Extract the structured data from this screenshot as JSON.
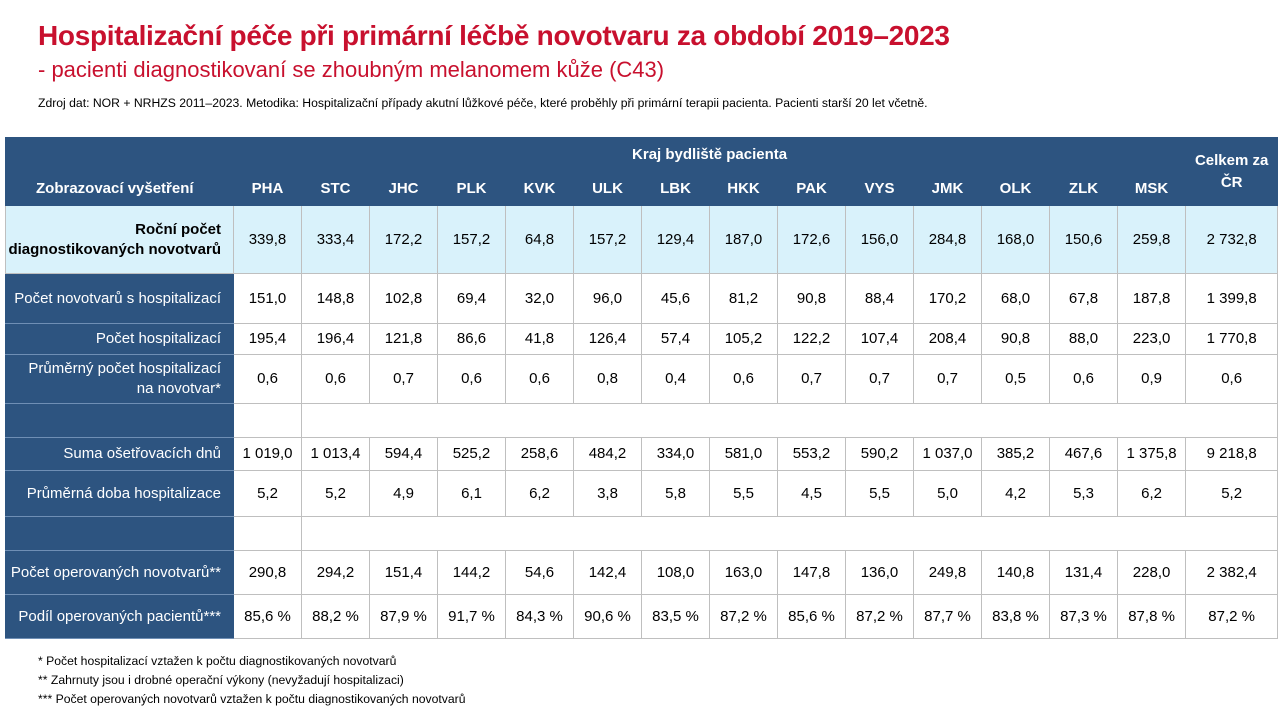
{
  "header": {
    "title": "Hospitalizační péče při primární léčbě novotvaru za období 2019–2023",
    "subtitle": "- pacienti diagnostikovaní se zhoubným melanomem kůže (C43)",
    "source": "Zdroj dat: NOR + NRHZS 2011–2023. Metodika: Hospitalizační případy akutní lůžkové péče, které proběhly při primární terapii pacienta. Pacienti starší 20 let včetně."
  },
  "table": {
    "row_header_label": "Zobrazovací vyšetření",
    "region_group_label": "Kraj bydliště pacienta",
    "total_label": "Celkem za ČR",
    "regions": [
      "PHA",
      "STC",
      "JHC",
      "PLK",
      "KVK",
      "ULK",
      "LBK",
      "HKK",
      "PAK",
      "VYS",
      "JMK",
      "OLK",
      "ZLK",
      "MSK"
    ],
    "rows": [
      {
        "label": "Roční počet diagnostikovaných novotvarů",
        "cells": [
          "339,8",
          "333,4",
          "172,2",
          "157,2",
          "64,8",
          "157,2",
          "129,4",
          "187,0",
          "172,6",
          "156,0",
          "284,8",
          "168,0",
          "150,6",
          "259,8",
          "2 732,8"
        ]
      },
      {
        "label": "Počet novotvarů s hospitalizací",
        "cells": [
          "151,0",
          "148,8",
          "102,8",
          "69,4",
          "32,0",
          "96,0",
          "45,6",
          "81,2",
          "90,8",
          "88,4",
          "170,2",
          "68,0",
          "67,8",
          "187,8",
          "1 399,8"
        ]
      },
      {
        "label": "Počet hospitalizací",
        "cells": [
          "195,4",
          "196,4",
          "121,8",
          "86,6",
          "41,8",
          "126,4",
          "57,4",
          "105,2",
          "122,2",
          "107,4",
          "208,4",
          "90,8",
          "88,0",
          "223,0",
          "1 770,8"
        ]
      },
      {
        "label": "Průměrný počet hospitalizací na novotvar*",
        "cells": [
          "0,6",
          "0,6",
          "0,7",
          "0,6",
          "0,6",
          "0,8",
          "0,4",
          "0,6",
          "0,7",
          "0,7",
          "0,7",
          "0,5",
          "0,6",
          "0,9",
          "0,6"
        ]
      },
      {
        "label": "Suma ošetřovacích dnů",
        "cells": [
          "1 019,0",
          "1 013,4",
          "594,4",
          "525,2",
          "258,6",
          "484,2",
          "334,0",
          "581,0",
          "553,2",
          "590,2",
          "1 037,0",
          "385,2",
          "467,6",
          "1 375,8",
          "9 218,8"
        ]
      },
      {
        "label": "Průměrná doba hospitalizace",
        "cells": [
          "5,2",
          "5,2",
          "4,9",
          "6,1",
          "6,2",
          "3,8",
          "5,8",
          "5,5",
          "4,5",
          "5,5",
          "5,0",
          "4,2",
          "5,3",
          "6,2",
          "5,2"
        ]
      },
      {
        "label": "Počet operovaných novotvarů**",
        "cells": [
          "290,8",
          "294,2",
          "151,4",
          "144,2",
          "54,6",
          "142,4",
          "108,0",
          "163,0",
          "147,8",
          "136,0",
          "249,8",
          "140,8",
          "131,4",
          "228,0",
          "2 382,4"
        ]
      },
      {
        "label": "Podíl operovaných pacientů***",
        "cells": [
          "85,6 %",
          "88,2 %",
          "87,9 %",
          "91,7 %",
          "84,3 %",
          "90,6 %",
          "83,5 %",
          "87,2 %",
          "85,6 %",
          "87,2 %",
          "87,7 %",
          "83,8 %",
          "87,3 %",
          "87,8 %",
          "87,2 %"
        ]
      }
    ]
  },
  "footnotes": [
    "* Počet hospitalizací vztažen k počtu diagnostikovaných novotvarů",
    "** Zahrnuty jsou i drobné operační výkony (nevyžadují hospitalizaci)",
    "*** Počet operovaných novotvarů vztažen k počtu diagnostikovaných novotvarů"
  ],
  "colors": {
    "title": "#c8102e",
    "header_bg": "#2d5480",
    "highlight_row_bg": "#d9f2fb"
  }
}
